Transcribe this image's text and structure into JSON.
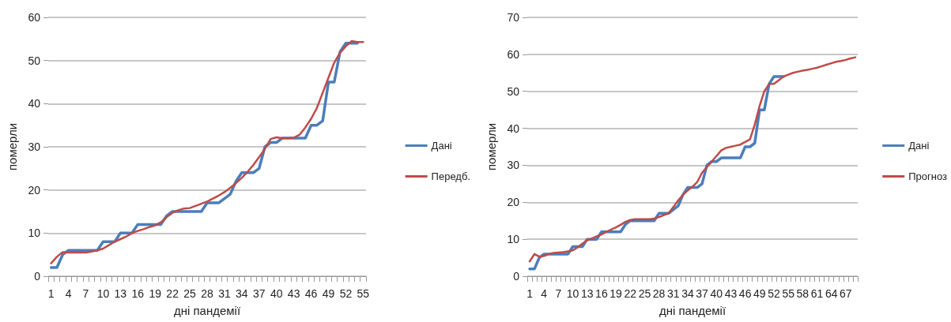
{
  "chart_data": [
    {
      "type": "line",
      "ylabel": "померли",
      "xlabel": "дні пандемії",
      "categories": [
        "1",
        null,
        null,
        "4",
        null,
        null,
        "7",
        null,
        null,
        "10",
        null,
        null,
        "13",
        null,
        null,
        "16",
        null,
        null,
        "19",
        null,
        null,
        "22",
        null,
        null,
        "25",
        null,
        null,
        "28",
        null,
        null,
        "31",
        null,
        null,
        "34",
        null,
        null,
        "37",
        null,
        null,
        "40",
        null,
        null,
        "43",
        null,
        null,
        "46",
        null,
        null,
        "49",
        null,
        null,
        "52",
        null,
        null,
        "55"
      ],
      "ylim": [
        0,
        60
      ],
      "yticks": [
        0,
        10,
        20,
        30,
        40,
        50,
        60
      ],
      "grid": "y",
      "legend": "right",
      "marker": "none",
      "series": [
        {
          "name": "Дані",
          "color": "#4a7ebb",
          "values": [
            2,
            2,
            5,
            6,
            6,
            6,
            6,
            6,
            6,
            8,
            8,
            8,
            10,
            10,
            10,
            12,
            12,
            12,
            12,
            12,
            14,
            15,
            15,
            15,
            15,
            15,
            15,
            17,
            17,
            17,
            18,
            19,
            22,
            24,
            24,
            24,
            25,
            30,
            31,
            31,
            32,
            32,
            32,
            32,
            32,
            35,
            35,
            36,
            45,
            45,
            52,
            54,
            54,
            54,
            null
          ]
        },
        {
          "name": "Передб.",
          "color": "#be4b48",
          "values": [
            3,
            4.5,
            5.6,
            5.5,
            5.5,
            5.5,
            5.5,
            5.7,
            6,
            6.4,
            7.2,
            8,
            8.6,
            9.2,
            10,
            10.5,
            10.9,
            11.4,
            11.8,
            12.5,
            13.7,
            14.7,
            15.3,
            15.7,
            15.8,
            16.3,
            16.8,
            17.3,
            18,
            18.7,
            19.5,
            20.5,
            21.6,
            22.8,
            24.2,
            25.8,
            27.6,
            29.5,
            31.8,
            32.2,
            32,
            32,
            32.1,
            32.8,
            34.5,
            36.5,
            39,
            42.5,
            46,
            49.5,
            51.8,
            53.3,
            54.5,
            54.3,
            54.3
          ]
        }
      ]
    },
    {
      "type": "line",
      "ylabel": "померли",
      "xlabel": "дні пандемії",
      "categories": [
        "1",
        null,
        null,
        "4",
        null,
        null,
        "7",
        null,
        null,
        "10",
        null,
        null,
        "13",
        null,
        null,
        "16",
        null,
        null,
        "19",
        null,
        null,
        "22",
        null,
        null,
        "25",
        null,
        null,
        "28",
        null,
        null,
        "31",
        null,
        null,
        "34",
        null,
        null,
        "37",
        null,
        null,
        "40",
        null,
        null,
        "43",
        null,
        null,
        "46",
        null,
        null,
        "49",
        null,
        null,
        "52",
        null,
        null,
        "55",
        null,
        null,
        "58",
        null,
        null,
        "61",
        null,
        null,
        "64",
        null,
        null,
        "67",
        null,
        null
      ],
      "ylim": [
        0,
        70
      ],
      "yticks": [
        0,
        10,
        20,
        30,
        40,
        50,
        60,
        70
      ],
      "grid": "y",
      "legend": "right",
      "marker": "none",
      "series": [
        {
          "name": "Дані",
          "color": "#4a7ebb",
          "values": [
            2,
            2,
            5,
            6,
            6,
            6,
            6,
            6,
            6,
            8,
            8,
            8,
            10,
            10,
            10,
            12,
            12,
            12,
            12,
            12,
            14,
            15,
            15,
            15,
            15,
            15,
            15,
            17,
            17,
            17,
            18,
            19,
            22,
            24,
            24,
            24,
            25,
            30,
            31,
            31,
            32,
            32,
            32,
            32,
            32,
            35,
            35,
            36,
            45,
            45,
            52,
            54,
            54,
            54,
            null,
            null,
            null,
            null,
            null,
            null,
            null,
            null,
            null,
            null,
            null,
            null,
            null,
            null,
            null
          ]
        },
        {
          "name": "Прогноз",
          "color": "#be4b48",
          "values": [
            4,
            6,
            5.3,
            5.5,
            6,
            6.3,
            6.4,
            6.5,
            6.7,
            7,
            7.8,
            8.8,
            9.7,
            10.2,
            10.8,
            11.3,
            12,
            12.6,
            13.2,
            13.9,
            14.7,
            15.2,
            15.4,
            15.4,
            15.4,
            15.4,
            15.6,
            16,
            16.5,
            17,
            18.7,
            20.5,
            22,
            23.2,
            24.2,
            25.5,
            28,
            29.5,
            31,
            32.5,
            34,
            34.7,
            35,
            35.3,
            35.6,
            36.3,
            37,
            41,
            46,
            50,
            52,
            52,
            53,
            54,
            54.5,
            55,
            55.3,
            55.6,
            55.8,
            56.1,
            56.4,
            56.8,
            57.2,
            57.6,
            58,
            58.2,
            58.5,
            58.9,
            59.2
          ]
        }
      ]
    }
  ]
}
